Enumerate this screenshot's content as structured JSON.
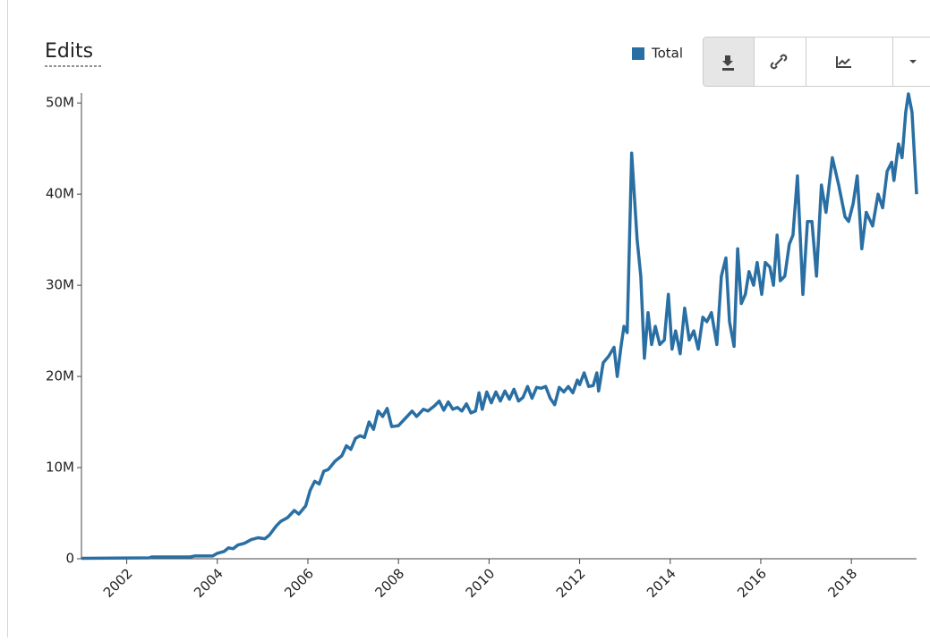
{
  "chart_data": {
    "type": "line",
    "title": "Edits",
    "x": [
      2001.0,
      2002.5,
      2002.55,
      2003.4,
      2003.5,
      2003.9,
      2004.0,
      2004.15,
      2004.25,
      2004.35,
      2004.45,
      2004.6,
      2004.75,
      2004.9,
      2005.05,
      2005.15,
      2005.3,
      2005.4,
      2005.55,
      2005.7,
      2005.8,
      2005.95,
      2006.05,
      2006.15,
      2006.25,
      2006.35,
      2006.45,
      2006.6,
      2006.75,
      2006.85,
      2006.95,
      2007.05,
      2007.15,
      2007.25,
      2007.35,
      2007.45,
      2007.55,
      2007.65,
      2007.75,
      2007.85,
      2008.0,
      2008.15,
      2008.3,
      2008.4,
      2008.55,
      2008.65,
      2008.8,
      2008.9,
      2009.0,
      2009.1,
      2009.2,
      2009.3,
      2009.4,
      2009.5,
      2009.6,
      2009.7,
      2009.78,
      2009.85,
      2009.95,
      2010.05,
      2010.15,
      2010.25,
      2010.35,
      2010.45,
      2010.55,
      2010.65,
      2010.75,
      2010.85,
      2010.95,
      2011.05,
      2011.15,
      2011.25,
      2011.35,
      2011.45,
      2011.55,
      2011.65,
      2011.75,
      2011.85,
      2011.95,
      2012.0,
      2012.1,
      2012.2,
      2012.3,
      2012.38,
      2012.42,
      2012.52,
      2012.64,
      2012.7,
      2012.76,
      2012.83,
      2012.92,
      2012.98,
      2013.05,
      2013.15,
      2013.27,
      2013.35,
      2013.43,
      2013.51,
      2013.59,
      2013.67,
      2013.77,
      2013.87,
      2013.96,
      2014.04,
      2014.12,
      2014.22,
      2014.32,
      2014.42,
      2014.52,
      2014.62,
      2014.72,
      2014.81,
      2014.91,
      2015.03,
      2015.13,
      2015.23,
      2015.31,
      2015.41,
      2015.49,
      2015.57,
      2015.66,
      2015.74,
      2015.84,
      2015.92,
      2016.02,
      2016.1,
      2016.2,
      2016.28,
      2016.36,
      2016.43,
      2016.53,
      2016.63,
      2016.71,
      2016.81,
      2016.93,
      2017.03,
      2017.13,
      2017.23,
      2017.34,
      2017.44,
      2017.58,
      2017.72,
      2017.86,
      2017.94,
      2018.04,
      2018.13,
      2018.23,
      2018.33,
      2018.47,
      2018.59,
      2018.69,
      2018.79,
      2018.89,
      2018.94,
      2019.04,
      2019.12,
      2019.2,
      2019.26,
      2019.34,
      2019.44
    ],
    "series": [
      {
        "name": "Total",
        "color": "#2a6fa3",
        "values": [
          0.05,
          0.1,
          0.2,
          0.2,
          0.3,
          0.3,
          0.6,
          0.8,
          1.2,
          1.1,
          1.5,
          1.7,
          2.1,
          2.3,
          2.2,
          2.6,
          3.6,
          4.1,
          4.5,
          5.3,
          4.9,
          5.8,
          7.5,
          8.5,
          8.2,
          9.6,
          9.8,
          10.7,
          11.3,
          12.4,
          12.0,
          13.2,
          13.5,
          13.3,
          15.0,
          14.2,
          16.2,
          15.6,
          16.5,
          14.5,
          14.6,
          15.4,
          16.2,
          15.6,
          16.4,
          16.2,
          16.8,
          17.3,
          16.3,
          17.2,
          16.4,
          16.6,
          16.2,
          17.0,
          16.0,
          16.2,
          18.2,
          16.4,
          18.3,
          17.1,
          18.3,
          17.3,
          18.4,
          17.5,
          18.6,
          17.3,
          17.7,
          18.9,
          17.6,
          18.8,
          18.7,
          18.9,
          17.6,
          16.9,
          18.8,
          18.3,
          18.9,
          18.2,
          19.6,
          19.1,
          20.4,
          18.9,
          19.0,
          20.4,
          18.4,
          21.5,
          22.2,
          22.7,
          23.2,
          20.0,
          23.5,
          25.5,
          24.8,
          44.5,
          35.0,
          31.0,
          22.0,
          27.0,
          23.5,
          25.5,
          23.5,
          24.0,
          29.0,
          23.0,
          25.0,
          22.5,
          27.5,
          24.0,
          25.0,
          23.0,
          26.5,
          26.0,
          27.0,
          23.5,
          31.0,
          33.0,
          26.0,
          23.3,
          34.0,
          28.0,
          29.0,
          31.5,
          30.0,
          32.5,
          29.0,
          32.5,
          32.0,
          30.0,
          35.5,
          30.5,
          31.0,
          34.5,
          35.5,
          42.0,
          29.0,
          37.0,
          37.0,
          31.0,
          41.0,
          38.0,
          44.0,
          41.0,
          37.5,
          37.0,
          39.0,
          42.0,
          34.0,
          38.0,
          36.5,
          40.0,
          38.5,
          42.5,
          43.5,
          41.5,
          45.5,
          44.0,
          49.0,
          51.0,
          49.0,
          40.0
        ]
      }
    ],
    "xlim": [
      2001.0,
      2019.44
    ],
    "xticks": [
      2002,
      2004,
      2006,
      2008,
      2010,
      2012,
      2014,
      2016,
      2018
    ],
    "ylim": [
      0,
      51
    ],
    "yticks": [
      0,
      {
        "value": 10,
        "label": "10M"
      },
      {
        "value": 20,
        "label": "20M"
      },
      {
        "value": 30,
        "label": "30M"
      },
      {
        "value": 40,
        "label": "40M"
      },
      {
        "value": 50,
        "label": "50M"
      }
    ],
    "legend": "top-right"
  }
}
